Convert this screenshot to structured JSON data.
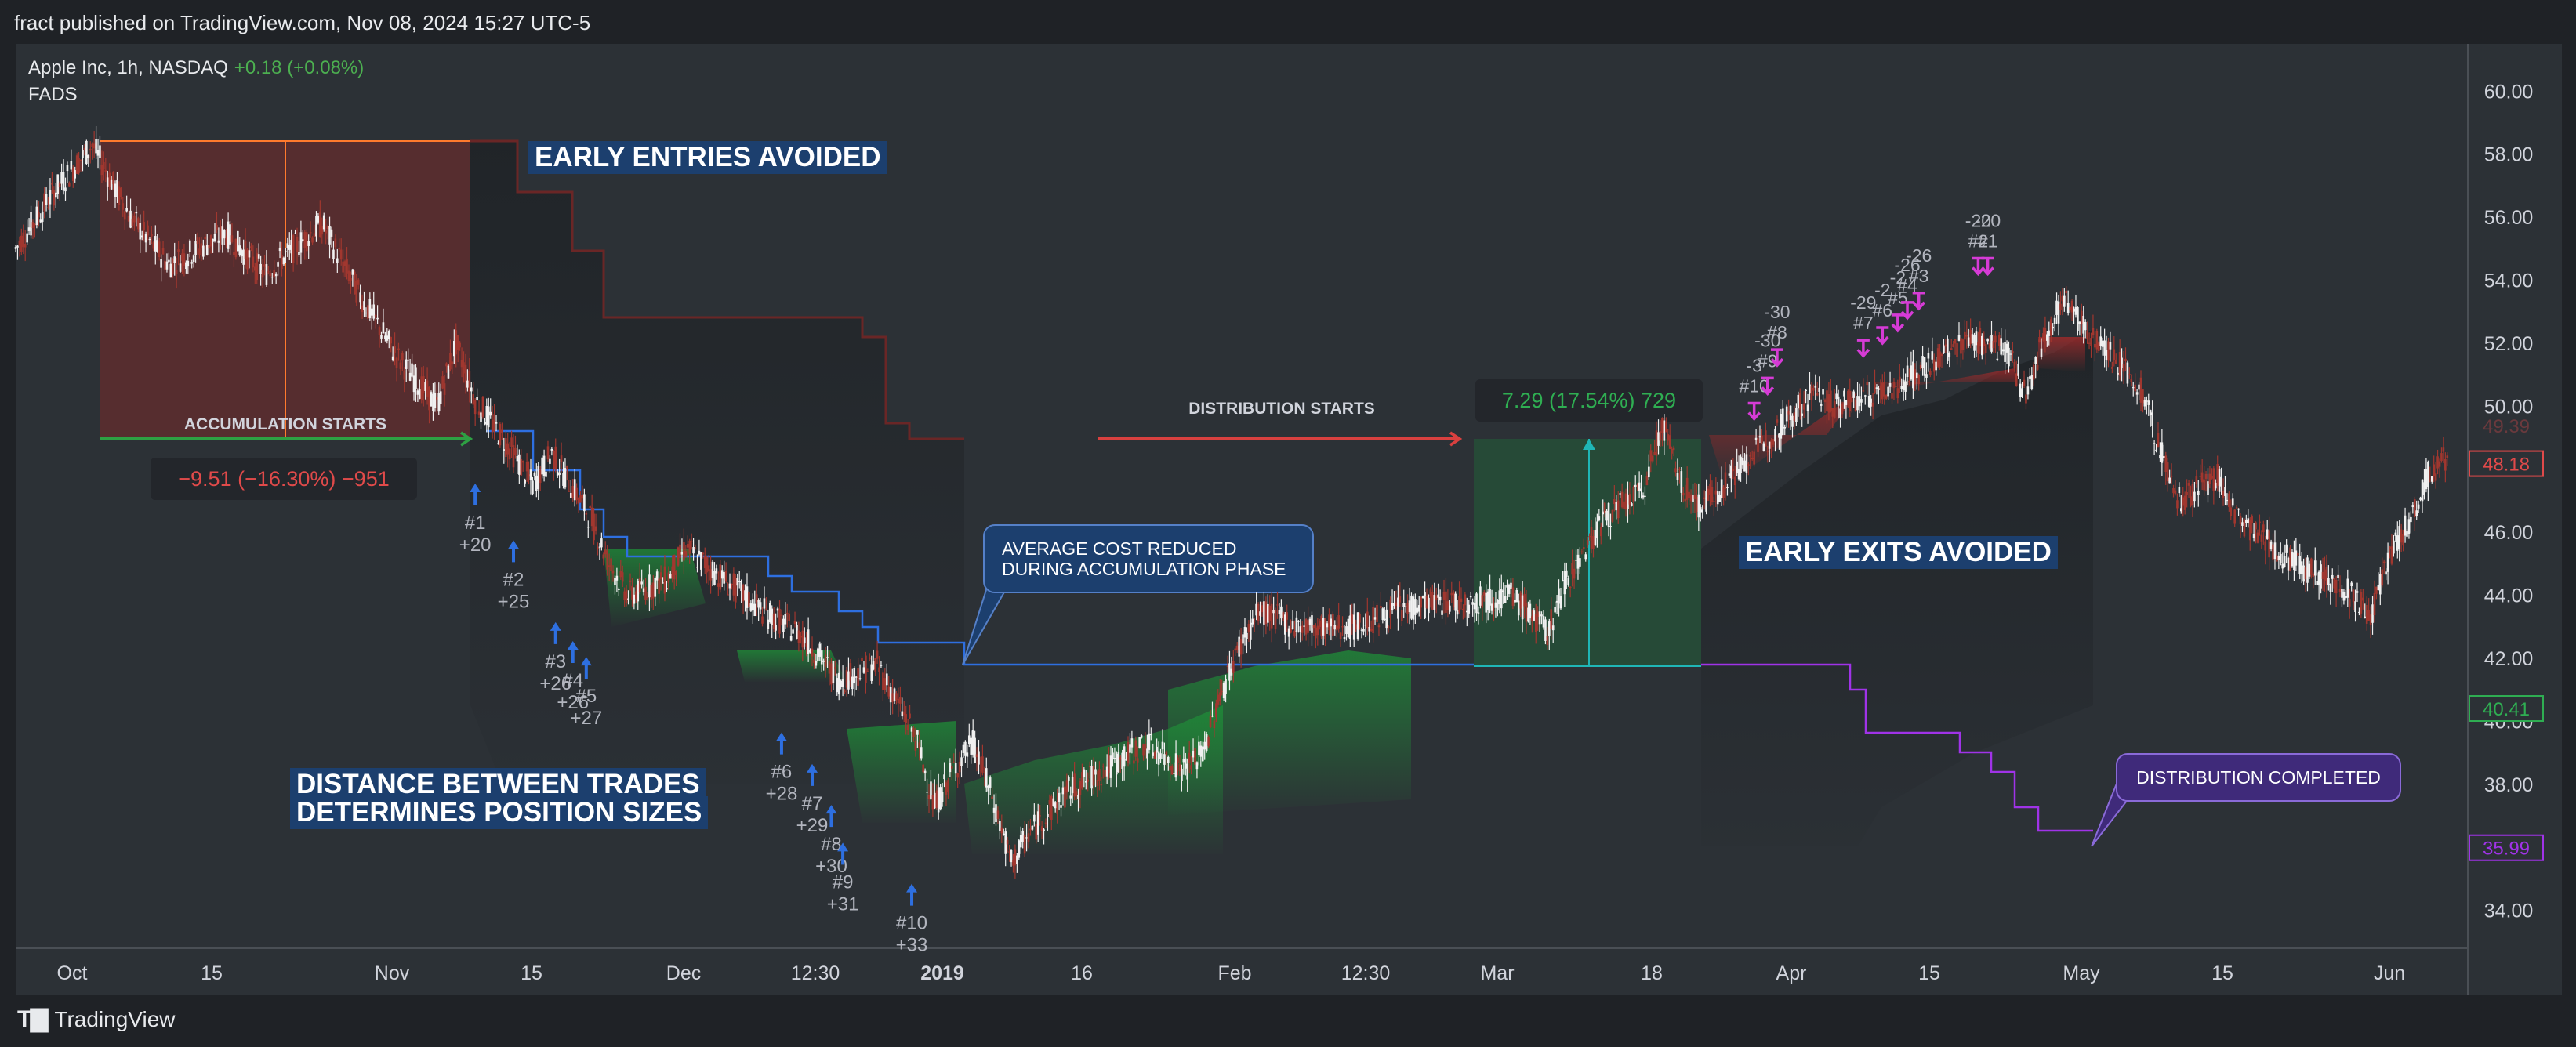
{
  "header": {
    "published": "fract published on TradingView.com, Nov 08, 2024 15:27 UTC-5"
  },
  "footer": {
    "brand": "TradingView"
  },
  "legend": {
    "symbol": "Apple Inc, 1h, NASDAQ",
    "change": "+0.18 (+0.08%)",
    "indicator": "FADS"
  },
  "chart_data": {
    "type": "candlestick",
    "symbol": "Apple Inc",
    "interval": "1h",
    "exchange": "NASDAQ",
    "y_range": [
      32.8,
      61.5
    ],
    "y_ticks": [
      "34.00",
      "36.00",
      "38.00",
      "40.00",
      "42.00",
      "44.00",
      "46.00",
      "48.00",
      "50.00",
      "52.00",
      "54.00",
      "56.00",
      "58.00",
      "60.00"
    ],
    "x_ticks": [
      "Oct",
      "15",
      "Nov",
      "15",
      "Dec",
      "12:30",
      "2019",
      "16",
      "Feb",
      "12:30",
      "Mar",
      "18",
      "Apr",
      "15",
      "May",
      "15",
      "Jun"
    ],
    "price_path": [
      [
        0,
        55.0
      ],
      [
        2,
        56.8
      ],
      [
        4,
        58.3
      ],
      [
        6,
        56.0
      ],
      [
        8,
        54.5
      ],
      [
        11,
        55.5
      ],
      [
        13,
        54.2
      ],
      [
        16,
        55.8
      ],
      [
        18,
        53.5
      ],
      [
        20,
        51.5
      ],
      [
        22,
        50.0
      ],
      [
        23,
        52.0
      ],
      [
        24,
        50.2
      ],
      [
        26,
        48.5
      ],
      [
        27,
        47.5
      ],
      [
        28,
        48.5
      ],
      [
        30,
        46.5
      ],
      [
        31,
        45.0
      ],
      [
        32,
        44.0
      ],
      [
        34,
        44.5
      ],
      [
        35,
        45.5
      ],
      [
        37,
        44.5
      ],
      [
        39,
        43.5
      ],
      [
        41,
        42.8
      ],
      [
        43,
        41.3
      ],
      [
        45,
        41.8
      ],
      [
        47,
        39.5
      ],
      [
        48,
        37.3
      ],
      [
        49,
        38.5
      ],
      [
        50,
        39.3
      ],
      [
        51,
        37.6
      ],
      [
        52,
        35.5
      ],
      [
        53,
        36.5
      ],
      [
        55,
        37.8
      ],
      [
        57,
        38.5
      ],
      [
        59,
        39.3
      ],
      [
        61,
        38.5
      ],
      [
        62,
        39.0
      ],
      [
        63,
        41.0
      ],
      [
        64,
        42.5
      ],
      [
        65,
        43.5
      ],
      [
        67,
        43.0
      ],
      [
        70,
        43.0
      ],
      [
        72,
        43.5
      ],
      [
        74,
        43.8
      ],
      [
        76,
        43.8
      ],
      [
        78,
        44.0
      ],
      [
        79,
        43.5
      ],
      [
        80,
        42.8
      ],
      [
        81,
        44.5
      ],
      [
        82,
        45.5
      ],
      [
        83,
        46.5
      ],
      [
        85,
        47.3
      ],
      [
        86,
        49.5
      ],
      [
        87,
        47.5
      ],
      [
        88,
        46.8
      ],
      [
        90,
        48.0
      ],
      [
        92,
        49.3
      ],
      [
        94,
        50.5
      ],
      [
        95,
        50.0
      ],
      [
        96,
        50.2
      ],
      [
        98,
        50.6
      ],
      [
        100,
        51.3
      ],
      [
        102,
        52.2
      ],
      [
        104,
        51.8
      ],
      [
        105,
        50.3
      ],
      [
        106,
        52.3
      ],
      [
        107,
        53.4
      ],
      [
        108,
        52.5
      ],
      [
        109,
        52.0
      ],
      [
        111,
        50.5
      ],
      [
        112,
        48.6
      ],
      [
        113,
        47.0
      ],
      [
        115,
        47.8
      ],
      [
        116,
        46.5
      ],
      [
        117,
        46.0
      ],
      [
        119,
        45.0
      ],
      [
        121,
        44.5
      ],
      [
        122,
        44.0
      ],
      [
        123,
        43.3
      ],
      [
        124,
        45.3
      ],
      [
        125,
        46.3
      ],
      [
        126,
        47.8
      ],
      [
        127,
        48.4
      ]
    ],
    "series": [
      {
        "name": "accumulation average cost",
        "color": "#2e6fe0"
      },
      {
        "name": "distribution average price",
        "color": "#a033e8"
      }
    ],
    "entry_markers": [
      {
        "label": "#1",
        "qty": "+20",
        "x": 24.0,
        "y": 47.2
      },
      {
        "label": "#2",
        "qty": "+25",
        "x": 26.0,
        "y": 45.4
      },
      {
        "label": "#3",
        "qty": "+26",
        "x": 28.2,
        "y": 42.8
      },
      {
        "label": "#4",
        "qty": "+26",
        "x": 29.1,
        "y": 42.2
      },
      {
        "label": "#5",
        "qty": "+27",
        "x": 29.8,
        "y": 41.7
      },
      {
        "label": "#6",
        "qty": "+28",
        "x": 40.0,
        "y": 39.3
      },
      {
        "label": "#7",
        "qty": "+29",
        "x": 41.6,
        "y": 38.3
      },
      {
        "label": "#8",
        "qty": "+30",
        "x": 42.6,
        "y": 37.0
      },
      {
        "label": "#9",
        "qty": "+31",
        "x": 43.2,
        "y": 35.8
      },
      {
        "label": "#10",
        "qty": "+33",
        "x": 46.8,
        "y": 34.5
      }
    ],
    "exit_markers": [
      {
        "label": "#10",
        "qty": "-3",
        "x": 90.8,
        "y": 49.6
      },
      {
        "label": "#9",
        "qty": "-30",
        "x": 91.5,
        "y": 50.4
      },
      {
        "label": "#8",
        "qty": "-30",
        "x": 92.0,
        "y": 51.3
      },
      {
        "label": "#7",
        "qty": "-29",
        "x": 96.5,
        "y": 51.6
      },
      {
        "label": "#6",
        "qty": "-2",
        "x": 97.5,
        "y": 52.0
      },
      {
        "label": "#5",
        "qty": "-2",
        "x": 98.3,
        "y": 52.4
      },
      {
        "label": "#4",
        "qty": "-26",
        "x": 98.8,
        "y": 52.8
      },
      {
        "label": "#3",
        "qty": "-26",
        "x": 99.4,
        "y": 53.1
      },
      {
        "label": "#2",
        "qty": "-20",
        "x": 102.5,
        "y": 54.2
      },
      {
        "label": "#1",
        "qty": "-20",
        "x": 103.0,
        "y": 54.2
      }
    ],
    "price_labels": [
      {
        "value": "48.18",
        "color": "#e04a4a"
      },
      {
        "value": "40.41",
        "color": "#2fae52"
      },
      {
        "value": "35.99",
        "color": "#a033e8"
      }
    ],
    "price_labels_faded": [
      "49.39"
    ],
    "measurements": [
      {
        "text": "−9.51 (−16.30%) −951",
        "color": "#e04a4a"
      },
      {
        "text": "7.29 (17.54%) 729",
        "color": "#2fae52"
      }
    ],
    "annotations": {
      "early_entries": "EARLY ENTRIES AVOIDED",
      "early_exits": "EARLY EXITS AVOIDED",
      "distance_line1": "DISTANCE BETWEEN TRADES",
      "distance_line2": "DETERMINES POSITION SIZES",
      "accumulation_starts": "ACCUMULATION STARTS",
      "distribution_starts": "DISTRIBUTION STARTS",
      "avg_cost_line1": "AVERAGE COST REDUCED",
      "avg_cost_line2": "DURING ACCUMULATION PHASE",
      "distribution_completed": "DISTRIBUTION COMPLETED"
    }
  }
}
